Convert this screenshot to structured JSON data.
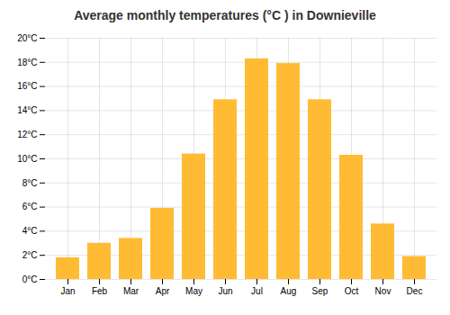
{
  "chart_data": {
    "type": "bar",
    "title": "Average monthly temperatures (°C ) in Downieville",
    "categories": [
      "Jan",
      "Feb",
      "Mar",
      "Apr",
      "May",
      "Jun",
      "Jul",
      "Aug",
      "Sep",
      "Oct",
      "Nov",
      "Dec"
    ],
    "values": [
      1.8,
      3.0,
      3.4,
      5.9,
      10.4,
      14.9,
      18.3,
      17.9,
      14.9,
      10.3,
      4.6,
      1.9
    ],
    "color": "#FFBB33",
    "ylim": [
      0,
      20
    ],
    "yticks": [
      {
        "value": 0,
        "label": "0°C"
      },
      {
        "value": 2,
        "label": "2°C"
      },
      {
        "value": 4,
        "label": "4°C"
      },
      {
        "value": 6,
        "label": "6°C"
      },
      {
        "value": 8,
        "label": "8°C"
      },
      {
        "value": 10,
        "label": "10°C"
      },
      {
        "value": 12,
        "label": "12°C"
      },
      {
        "value": 14,
        "label": "14°C"
      },
      {
        "value": 16,
        "label": "16°C"
      },
      {
        "value": 18,
        "label": "18°C"
      },
      {
        "value": 20,
        "label": "20°C"
      }
    ],
    "grid": true
  }
}
